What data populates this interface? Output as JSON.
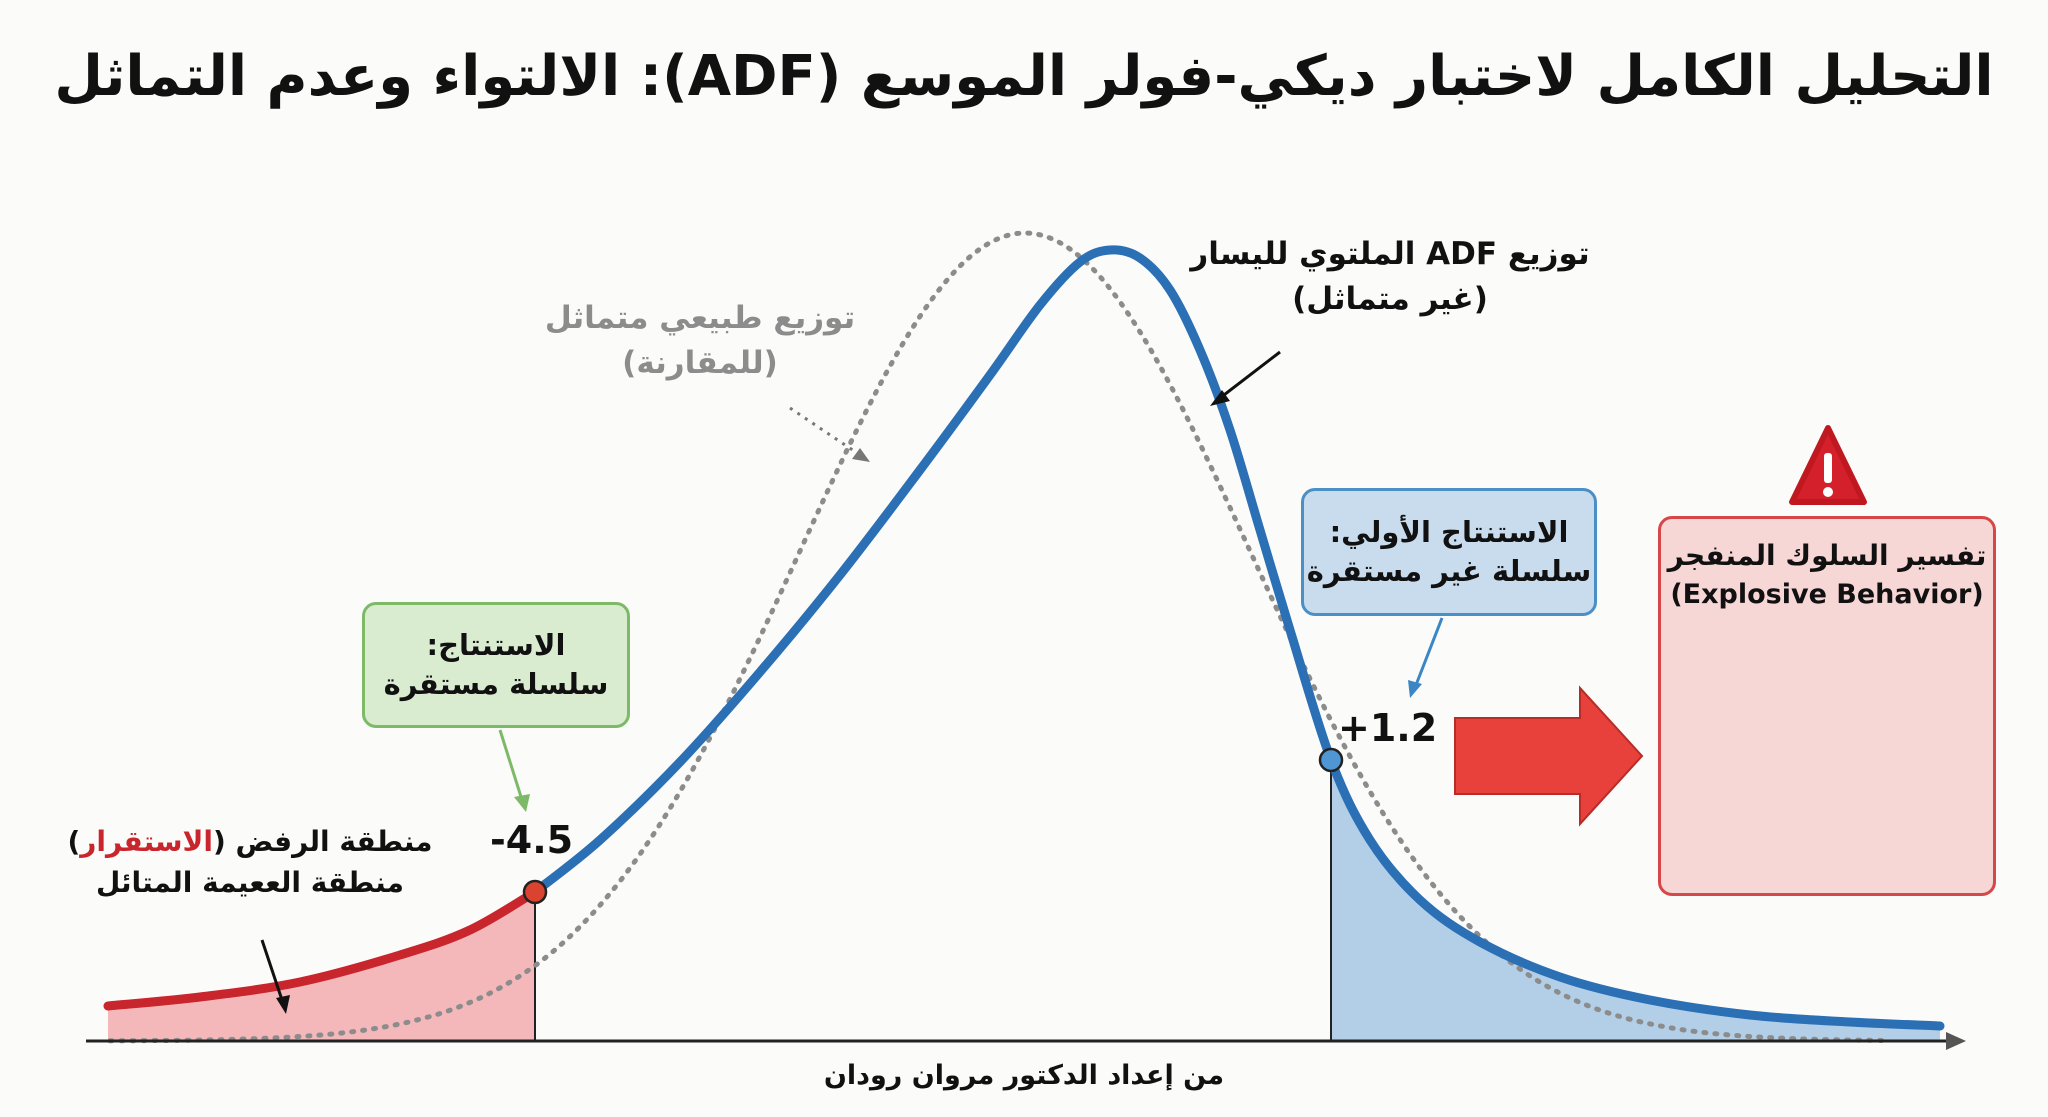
{
  "title": "التحليل الكامل لاختبار ديكي-فولر الموسع (ADF): الالتواء وعدم التماثل",
  "curves": {
    "adf": {
      "label_line1": "توزيع ADF الملتوي لليسار",
      "label_line2": "(غير متماثل)",
      "color": "#2b6fb5"
    },
    "normal": {
      "label_line1": "توزيع طبيعي متماثل",
      "label_line2": "(للمقارنة)",
      "color": "#8c8c8c"
    }
  },
  "rejection_region": {
    "label_prefix": "منطقة الرفض (",
    "label_highlight": "الاستقرار",
    "label_suffix": ")",
    "label_line2": "منطقة الععيمة المتائل",
    "color": "#c9252c",
    "fill": "#f4b8bb"
  },
  "stat_stable": {
    "value": "-4.5",
    "marker_color": "#d9432f"
  },
  "stat_unstable": {
    "value": "+1.2",
    "marker_color": "#4f97d4",
    "fill": "#b3cfe8"
  },
  "box_stable": {
    "line1": "الاستنتاج:",
    "line2": "سلسلة مستقرة"
  },
  "box_unstable": {
    "line1": "الاستنتاج الأولي:",
    "line2": "سلسلة غير مستقرة"
  },
  "box_explosive": {
    "line1": "تفسير السلوك المنفجر",
    "line2": "(Explosive Behavior)"
  },
  "warning_icon": "warning-triangle-icon",
  "arrow_color": "#e8403a",
  "credit": "من إعداد الدكتور مروان رودان"
}
